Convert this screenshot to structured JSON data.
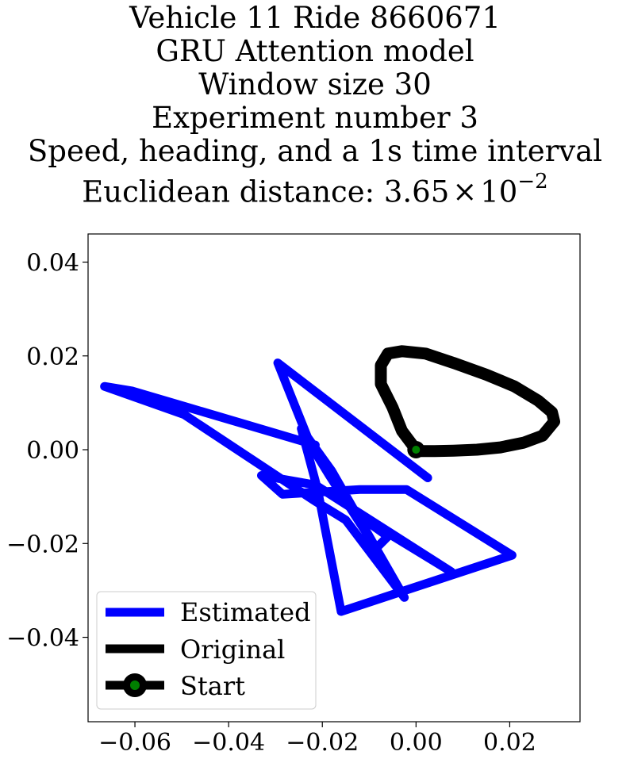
{
  "chart_data": {
    "type": "line",
    "title_lines": [
      "Vehicle 11 Ride 8660671",
      "GRU Attention model",
      "Window size 30",
      "Experiment number 3",
      "Speed, heading, and a 1s time interval"
    ],
    "distance_prefix": "Euclidean distance: 3.65",
    "distance_times": "×",
    "distance_base": "10",
    "distance_exponent": "−2",
    "xlim": [
      -0.07,
      0.035
    ],
    "ylim": [
      -0.058,
      0.046
    ],
    "xticks": [
      -0.06,
      -0.04,
      -0.02,
      0.0,
      0.02
    ],
    "xtick_labels": [
      "−0.06",
      "−0.04",
      "−0.02",
      "0.00",
      "0.02"
    ],
    "yticks": [
      0.04,
      0.02,
      0.0,
      -0.02,
      -0.04
    ],
    "ytick_labels": [
      "0.04",
      "0.02",
      "0.00",
      "−0.02",
      "−0.04"
    ],
    "legend_position": "lower-left",
    "series": [
      {
        "name": "Estimated",
        "color": "#0000ff",
        "x": [
          0.0025,
          -0.0295,
          -0.0225,
          -0.0185,
          -0.0085,
          -0.006,
          -0.013,
          0.0075,
          -0.0215,
          -0.033,
          -0.0285,
          -0.012,
          -0.002,
          0.0205,
          -0.016,
          -0.021,
          -0.0245,
          -0.018,
          -0.0025,
          -0.015,
          -0.0215,
          -0.0495,
          -0.0665,
          -0.0605,
          -0.0215
        ],
        "y": [
          -0.006,
          0.0185,
          0.001,
          -0.0055,
          -0.021,
          -0.0185,
          -0.0135,
          -0.026,
          -0.0075,
          -0.0055,
          -0.0095,
          -0.0085,
          -0.0085,
          -0.0225,
          -0.0345,
          -0.0085,
          0.0045,
          -0.0045,
          -0.0315,
          -0.015,
          -0.011,
          0.0075,
          0.0135,
          0.0125,
          0.001
        ]
      },
      {
        "name": "Original",
        "color": "#000000",
        "x": [
          0.0,
          -0.003,
          -0.005,
          -0.0075,
          -0.0075,
          -0.006,
          -0.003,
          0.002,
          0.008,
          0.015,
          0.021,
          0.026,
          0.029,
          0.0295,
          0.027,
          0.023,
          0.018,
          0.013,
          0.008,
          0.004,
          0.001,
          0.0
        ],
        "y": [
          0.0,
          0.004,
          0.009,
          0.014,
          0.018,
          0.0205,
          0.021,
          0.0205,
          0.0185,
          0.016,
          0.0135,
          0.0105,
          0.008,
          0.006,
          0.003,
          0.0015,
          0.0005,
          0.0,
          -0.0002,
          -0.0003,
          -0.0003,
          0.0
        ]
      }
    ],
    "start_point": {
      "name": "Start",
      "x": 0.0,
      "y": 0.0,
      "marker_color": "#008000",
      "edge_color": "#000000"
    }
  }
}
